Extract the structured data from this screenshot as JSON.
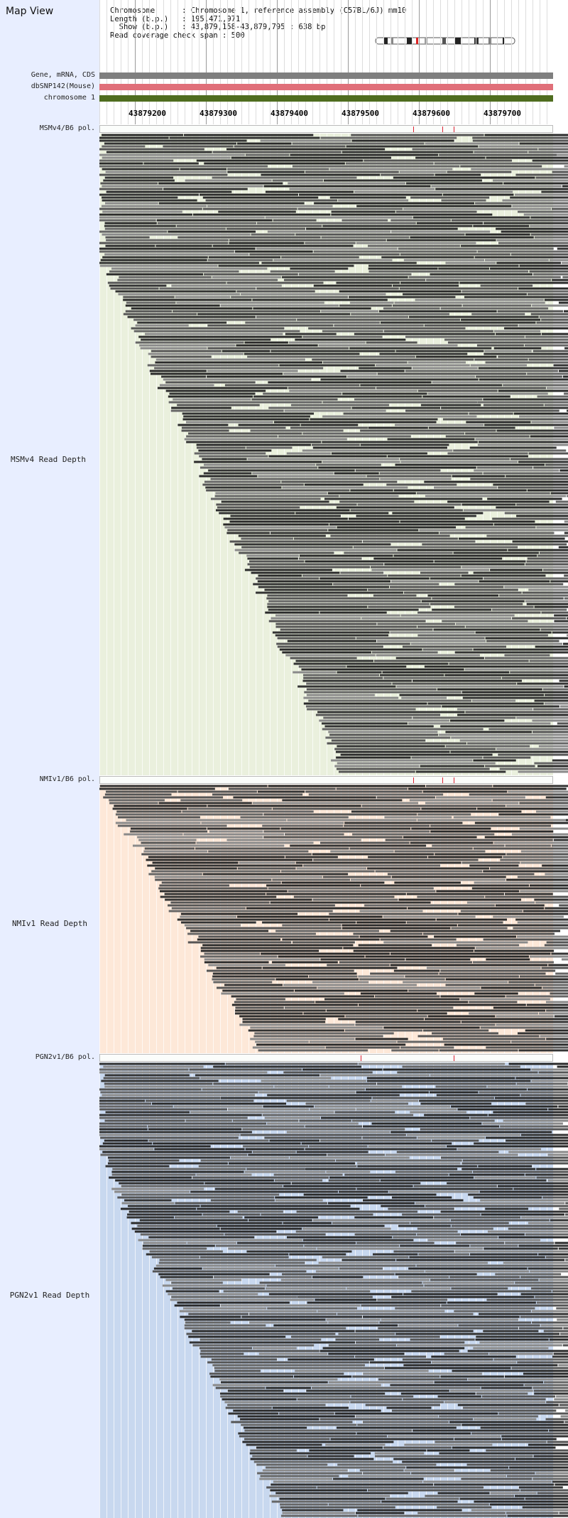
{
  "header": {
    "title": "Map View",
    "info_lines": [
      "Chromosome      : Chromosome 1, reference assembly (C57BL/6J) mm10",
      "Length (b.p.)   : 195,471,971",
      "  Show (b.p.)   : 43,879,158-43,879,795 : 638 bp",
      "Read coverage check span : 500"
    ]
  },
  "tracks": {
    "gene": {
      "label": "Gene, mRNA, CDS",
      "color": "#7f7f7f"
    },
    "dbsnp": {
      "label": "dbSNP142(Mouse)",
      "color": "#e06f79"
    },
    "chromosome": {
      "label": "chromosome 1",
      "color": "#4f6d1f"
    }
  },
  "ruler": {
    "ticks": [
      "43879200",
      "43879300",
      "43879400",
      "43879500",
      "43879600",
      "43879700"
    ]
  },
  "panels": [
    {
      "pol_label": "MSMv4/B6 pol.",
      "depth_label": "MSMv4 Read Depth",
      "bg": "#eaf0dd",
      "marks": [
        0.69,
        0.755,
        0.78
      ]
    },
    {
      "pol_label": "NMIv1/B6 pol.",
      "depth_label": "NMIv1 Read Depth",
      "bg": "#fde8d8",
      "marks": [
        0.69,
        0.755,
        0.78
      ]
    },
    {
      "pol_label": "PGN2v1/B6 pol.",
      "depth_label": "PGN2v1 Read Depth",
      "bg": "#c8d8ef",
      "marks": [
        0.575,
        0.78
      ]
    }
  ],
  "colors": {
    "read_dark": "#333333",
    "read_mid": "#666666",
    "read_light": "#8a8a8a",
    "grid": "#ffffff"
  }
}
